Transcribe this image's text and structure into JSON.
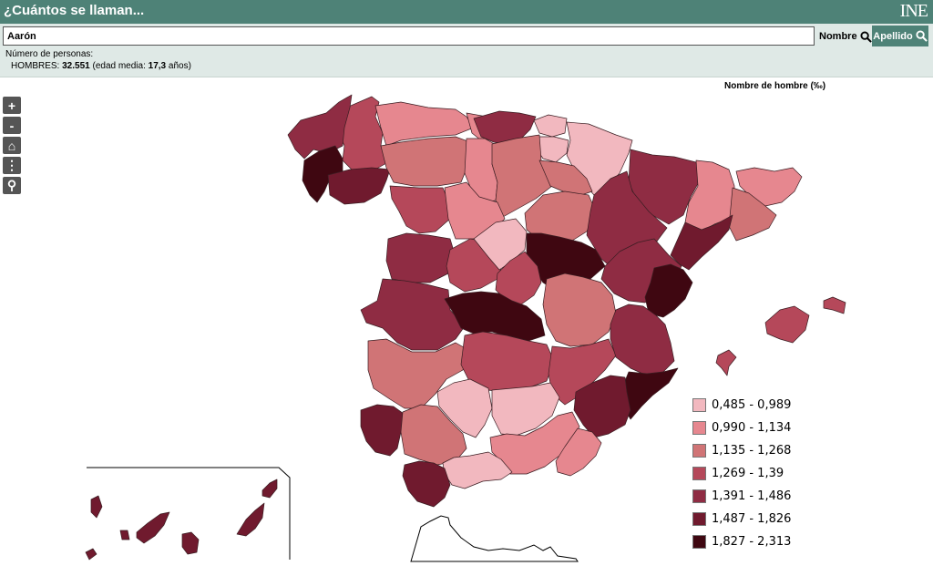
{
  "header": {
    "title": "¿Cuántos se llaman...",
    "logo": "INE"
  },
  "search": {
    "value": "Aarón",
    "nombre_label": "Nombre",
    "apellido_label": "Apellido"
  },
  "info": {
    "label": "Número de personas:",
    "sex_label": "HOMBRES:",
    "count": "32.551",
    "age_label": "(edad media:",
    "age": "17,3",
    "age_unit": "años)"
  },
  "map": {
    "title": "Nombre de hombre (‰)"
  },
  "controls": [
    {
      "name": "zoom-in-button",
      "glyph": "+"
    },
    {
      "name": "zoom-out-button",
      "glyph": "-"
    },
    {
      "name": "home-icon",
      "glyph": "⌂"
    },
    {
      "name": "more-options-icon",
      "glyph": "⋮"
    },
    {
      "name": "search-icon",
      "glyph": "⚲"
    }
  ],
  "legend": [
    {
      "label": "0,485 - 0,989",
      "color": "#f2b8bf"
    },
    {
      "label": "0,990 - 1,134",
      "color": "#e6878f"
    },
    {
      "label": "1,135 - 1,268",
      "color": "#d07476"
    },
    {
      "label": "1,269 - 1,39",
      "color": "#b5485a"
    },
    {
      "label": "1,391 - 1,486",
      "color": "#8f2c43"
    },
    {
      "label": "1,487 - 1,826",
      "color": "#701a2e"
    },
    {
      "label": "1,827 - 2,313",
      "color": "#3f0711"
    }
  ],
  "provinces": [
    {
      "name": "lugo",
      "class": 3
    },
    {
      "name": "coruna",
      "class": 4
    },
    {
      "name": "pontevedra",
      "class": 6
    },
    {
      "name": "ourense",
      "class": 5
    },
    {
      "name": "asturias",
      "class": 1
    },
    {
      "name": "cantabria",
      "class": 1
    },
    {
      "name": "vizcaya",
      "class": 4
    },
    {
      "name": "guipuzcoa",
      "class": 0
    },
    {
      "name": "alava",
      "class": 0
    },
    {
      "name": "navarra",
      "class": 0
    },
    {
      "name": "leon",
      "class": 2
    },
    {
      "name": "palencia",
      "class": 1
    },
    {
      "name": "burgos",
      "class": 2
    },
    {
      "name": "la-rioja",
      "class": 2
    },
    {
      "name": "zamora",
      "class": 3
    },
    {
      "name": "valladolid",
      "class": 1
    },
    {
      "name": "soria",
      "class": 2
    },
    {
      "name": "salamanca",
      "class": 4
    },
    {
      "name": "avila",
      "class": 3
    },
    {
      "name": "segovia",
      "class": 0
    },
    {
      "name": "guadalajara",
      "class": 6
    },
    {
      "name": "madrid",
      "class": 3
    },
    {
      "name": "huesca",
      "class": 4
    },
    {
      "name": "zaragoza",
      "class": 4
    },
    {
      "name": "teruel",
      "class": 4
    },
    {
      "name": "lleida",
      "class": 1
    },
    {
      "name": "girona",
      "class": 1
    },
    {
      "name": "barcelona",
      "class": 2
    },
    {
      "name": "tarragona",
      "class": 5
    },
    {
      "name": "caceres",
      "class": 4
    },
    {
      "name": "badajoz",
      "class": 2
    },
    {
      "name": "toledo",
      "class": 6
    },
    {
      "name": "ciudad-real",
      "class": 3
    },
    {
      "name": "cuenca",
      "class": 2
    },
    {
      "name": "albacete",
      "class": 3
    },
    {
      "name": "castellon",
      "class": 6
    },
    {
      "name": "valencia",
      "class": 4
    },
    {
      "name": "alicante",
      "class": 6
    },
    {
      "name": "murcia",
      "class": 5
    },
    {
      "name": "huelva",
      "class": 5
    },
    {
      "name": "sevilla",
      "class": 2
    },
    {
      "name": "cordoba",
      "class": 0
    },
    {
      "name": "jaen",
      "class": 0
    },
    {
      "name": "granada",
      "class": 1
    },
    {
      "name": "almeria",
      "class": 1
    },
    {
      "name": "malaga",
      "class": 0
    },
    {
      "name": "cadiz",
      "class": 5
    },
    {
      "name": "mallorca",
      "class": 3
    },
    {
      "name": "menorca",
      "class": 3
    },
    {
      "name": "ibiza",
      "class": 3
    },
    {
      "name": "canarias",
      "class": 5
    }
  ]
}
